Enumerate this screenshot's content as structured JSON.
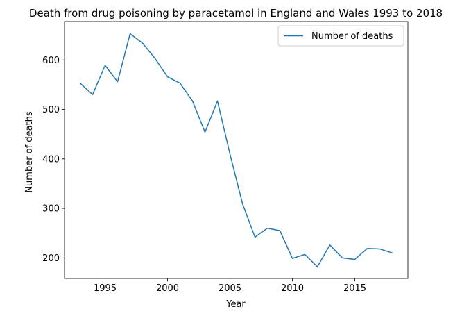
{
  "chart_data": {
    "type": "line",
    "title": "Death from drug poisoning by paracetamol in England and Wales 1993 to 2018",
    "xlabel": "Year",
    "ylabel": "Number of deaths",
    "x": [
      1993,
      1994,
      1995,
      1996,
      1997,
      1998,
      1999,
      2000,
      2001,
      2002,
      2003,
      2004,
      2005,
      2006,
      2007,
      2008,
      2009,
      2010,
      2011,
      2012,
      2013,
      2014,
      2015,
      2016,
      2017,
      2018
    ],
    "series": [
      {
        "name": "Number of deaths",
        "color": "#1f77b4",
        "values": [
          553,
          530,
          589,
          556,
          653,
          634,
          603,
          566,
          553,
          517,
          454,
          517,
          410,
          310,
          242,
          260,
          255,
          199,
          207,
          182,
          226,
          200,
          197,
          219,
          218,
          210
        ]
      }
    ],
    "xlim": [
      1991.75,
      2019.25
    ],
    "ylim": [
      158.4,
      677.6
    ],
    "xticks": [
      1995,
      2000,
      2005,
      2010,
      2015
    ],
    "yticks": [
      200,
      300,
      400,
      500,
      600
    ],
    "legend": "top-right",
    "grid": false
  }
}
